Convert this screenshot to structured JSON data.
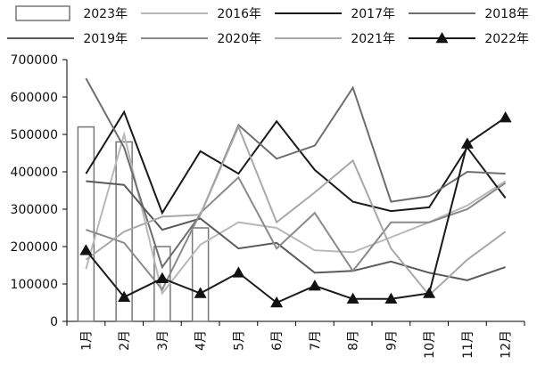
{
  "chart_data": {
    "type": "line",
    "categories": [
      "1月",
      "2月",
      "3月",
      "4月",
      "5月",
      "6月",
      "7月",
      "8月",
      "9月",
      "10月",
      "11月",
      "12月"
    ],
    "ylim": [
      0,
      700000
    ],
    "yticks": [
      0,
      100000,
      200000,
      300000,
      400000,
      500000,
      600000,
      700000
    ],
    "ytick_labels": [
      "0",
      "100000",
      "200000",
      "300000",
      "400000",
      "500000",
      "600000",
      "700000"
    ],
    "grid": false,
    "legend_position": "top",
    "legend": [
      "2023年",
      "2016年",
      "2017年",
      "2018年",
      "2019年",
      "2020年",
      "2021年",
      "2022年"
    ],
    "series": [
      {
        "name": "2023年",
        "kind": "bar",
        "color": "#777777",
        "values": [
          520000,
          480000,
          200000,
          250000,
          null,
          null,
          null,
          null,
          null,
          null,
          null,
          null
        ]
      },
      {
        "name": "2016年",
        "kind": "line",
        "color": "#b8b8b8",
        "values": [
          140000,
          500000,
          75000,
          205000,
          265000,
          250000,
          190000,
          185000,
          225000,
          265000,
          310000,
          375000
        ]
      },
      {
        "name": "2017年",
        "kind": "line",
        "color": "#1a1a1a",
        "values": [
          395000,
          560000,
          290000,
          455000,
          395000,
          535000,
          405000,
          320000,
          295000,
          305000,
          465000,
          330000
        ]
      },
      {
        "name": "2018年",
        "kind": "line",
        "color": "#6e6e6e",
        "values": [
          650000,
          465000,
          145000,
          285000,
          525000,
          435000,
          470000,
          625000,
          320000,
          335000,
          400000,
          395000
        ]
      },
      {
        "name": "2019年",
        "kind": "line",
        "color": "#5a5a5a",
        "values": [
          375000,
          365000,
          245000,
          275000,
          195000,
          210000,
          130000,
          135000,
          160000,
          130000,
          110000,
          145000
        ]
      },
      {
        "name": "2020年",
        "kind": "line",
        "color": "#8a8a8a",
        "values": [
          245000,
          210000,
          85000,
          290000,
          385000,
          195000,
          290000,
          135000,
          265000,
          265000,
          300000,
          370000
        ]
      },
      {
        "name": "2021年",
        "kind": "line",
        "color": "#a8a8a8",
        "values": [
          165000,
          240000,
          280000,
          285000,
          520000,
          265000,
          345000,
          430000,
          195000,
          70000,
          165000,
          240000
        ]
      },
      {
        "name": "2022年",
        "kind": "line-marker",
        "color": "#1a1a1a",
        "values": [
          190000,
          65000,
          115000,
          75000,
          130000,
          50000,
          95000,
          60000,
          60000,
          75000,
          475000,
          545000
        ]
      }
    ]
  }
}
